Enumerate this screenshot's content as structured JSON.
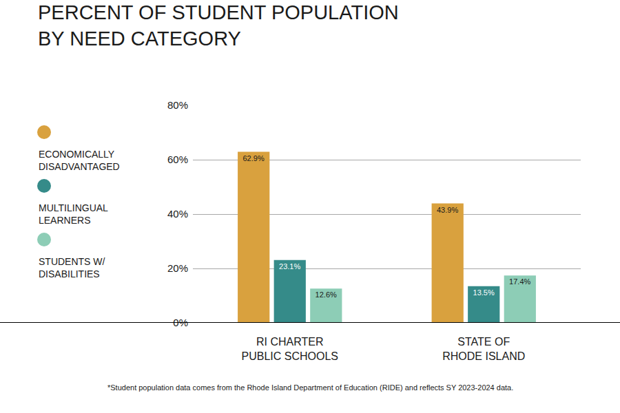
{
  "chart_data": {
    "type": "bar",
    "title": "PERCENT OF STUDENT POPULATION BY NEED CATEGORY",
    "categories": [
      "RI CHARTER PUBLIC SCHOOLS",
      "STATE OF RHODE ISLAND"
    ],
    "series": [
      {
        "name": "ECONOMICALLY DISADVANTAGED",
        "color": "#d9a13e",
        "values": [
          62.9,
          43.9
        ],
        "value_labels": [
          "62.9%",
          "43.9%"
        ]
      },
      {
        "name": "MULTILINGUAL LEARNERS",
        "color": "#358b89",
        "values": [
          23.1,
          13.5
        ],
        "value_labels": [
          "23.1%",
          "13.5%"
        ]
      },
      {
        "name": "STUDENTS W/ DISABILITIES",
        "color": "#8dcdb6",
        "values": [
          12.6,
          17.4
        ],
        "value_labels": [
          "12.6%",
          "17.4%"
        ]
      }
    ],
    "ylim": [
      0,
      80
    ],
    "yticks": [
      {
        "value": 0,
        "label": "0%"
      },
      {
        "value": 20,
        "label": "20%"
      },
      {
        "value": 40,
        "label": "40%"
      },
      {
        "value": 60,
        "label": "60%"
      },
      {
        "value": 80,
        "label": "80%"
      }
    ],
    "grid": true,
    "data_labels": true,
    "note": "*Student population data comes from the Rhode Island Department of Education (RIDE) and reflects SY 2023-2024 data."
  }
}
